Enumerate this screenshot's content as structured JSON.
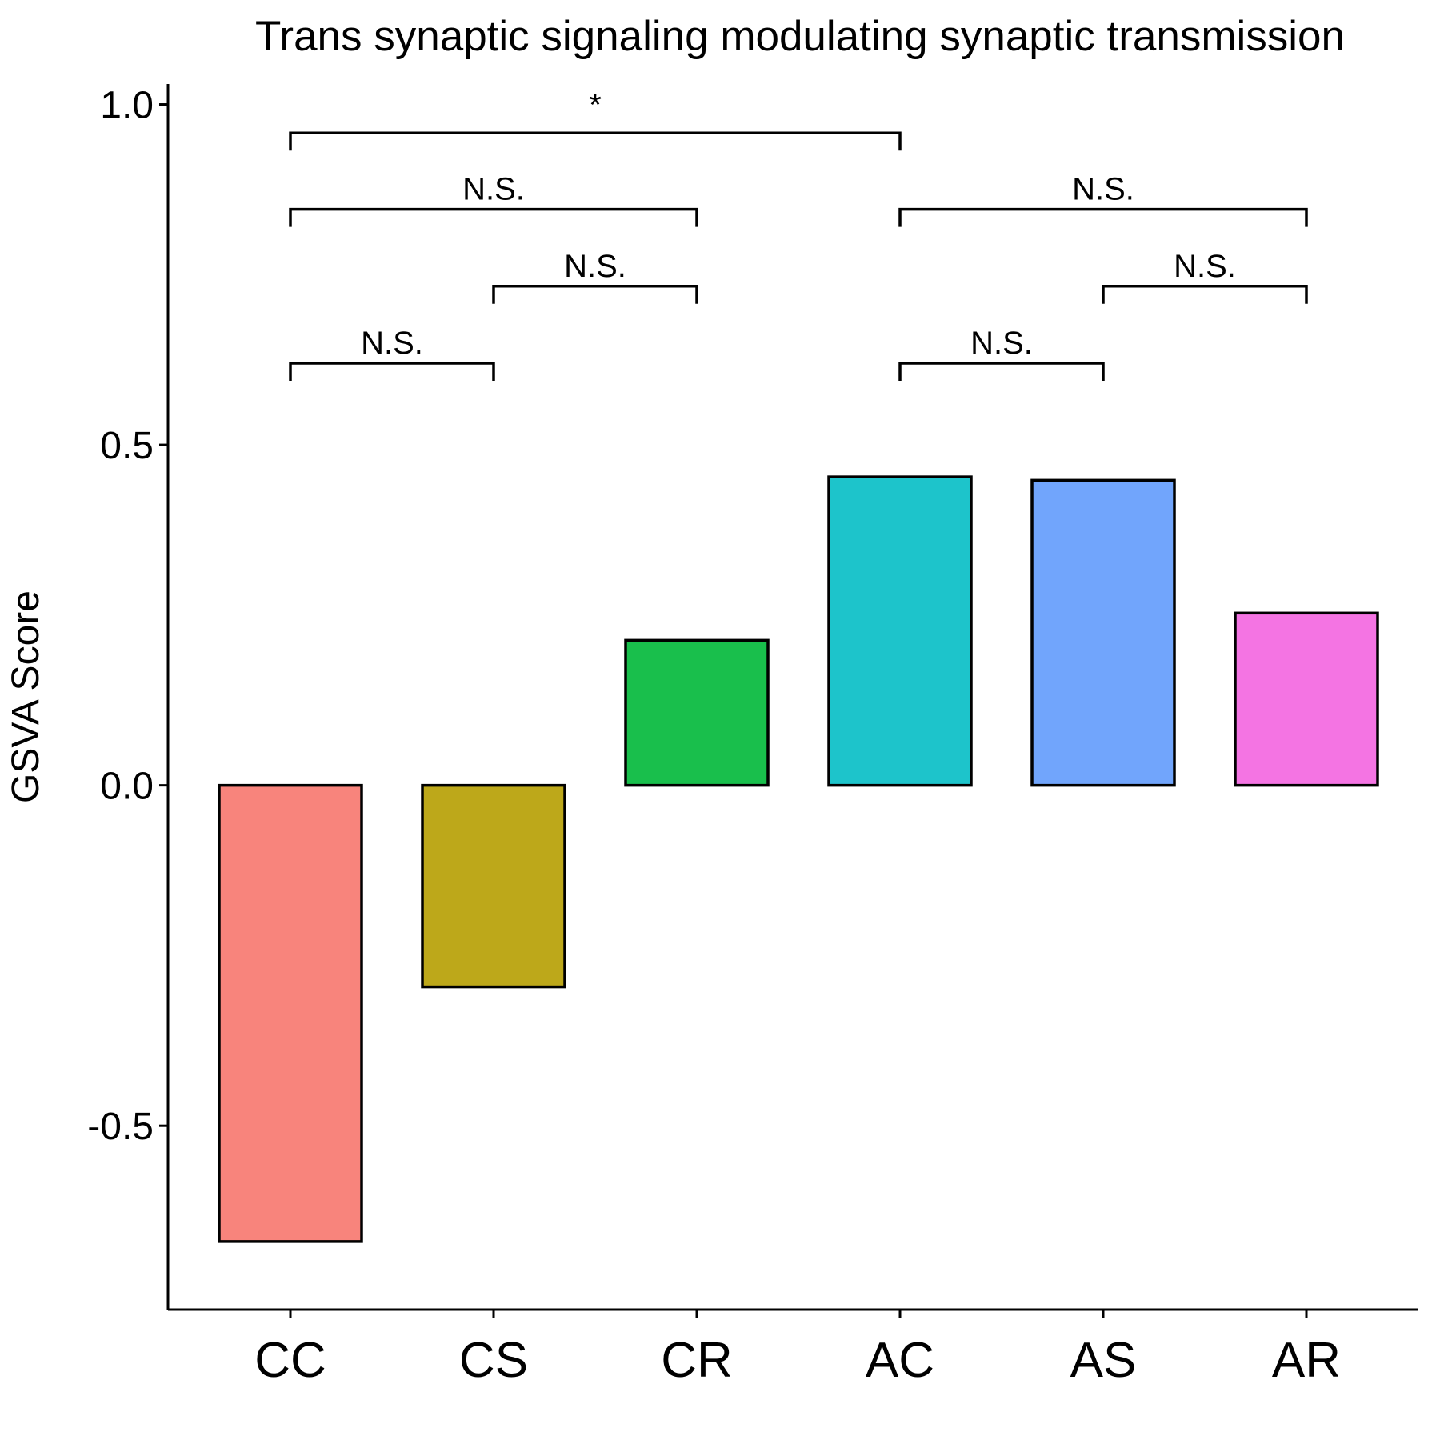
{
  "chart_data": {
    "type": "bar",
    "title": "Trans synaptic signaling modulating synaptic transmission",
    "xlabel": "",
    "ylabel": "GSVA Score",
    "categories": [
      "CC",
      "CS",
      "CR",
      "AC",
      "AS",
      "AR"
    ],
    "values": [
      -0.67,
      -0.296,
      0.213,
      0.453,
      0.448,
      0.253
    ],
    "colors": [
      "#F8847C",
      "#BDA81A",
      "#19BF4C",
      "#1DC4CB",
      "#71A5FC",
      "#F474E3"
    ],
    "ylim": [
      -0.77,
      1.03
    ],
    "yticks": [
      -0.5,
      0.0,
      0.5,
      1.0
    ],
    "ytick_labels": [
      "-0.5",
      "0.0",
      "0.5",
      "1.0"
    ],
    "grid": false,
    "legend": "none",
    "comparisons": [
      {
        "from": "CC",
        "to": "CS",
        "y": 0.62,
        "label": "N.S."
      },
      {
        "from": "CS",
        "to": "CR",
        "y": 0.733,
        "label": "N.S."
      },
      {
        "from": "AC",
        "to": "AS",
        "y": 0.62,
        "label": "N.S."
      },
      {
        "from": "AS",
        "to": "AR",
        "y": 0.733,
        "label": "N.S."
      },
      {
        "from": "CC",
        "to": "CR",
        "y": 0.846,
        "label": "N.S."
      },
      {
        "from": "AC",
        "to": "AR",
        "y": 0.846,
        "label": "N.S."
      },
      {
        "from": "CC",
        "to": "AC",
        "y": 0.958,
        "label": "*"
      }
    ]
  }
}
